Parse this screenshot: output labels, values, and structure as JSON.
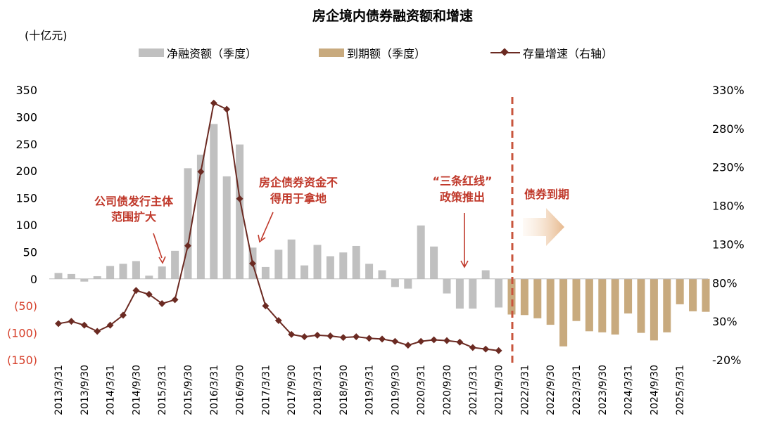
{
  "chart_data": {
    "type": "bar",
    "title": "房企境内债券融资额和增速",
    "unit_label": "(十亿元)",
    "legend": [
      {
        "key": "net",
        "label": "净融资额（季度）",
        "color": "#c0c0c0",
        "marker": "bar"
      },
      {
        "key": "maturity",
        "label": "到期额（季度）",
        "color": "#c8aa7e",
        "marker": "bar"
      },
      {
        "key": "growth",
        "label": "存量增速（右轴）",
        "color": "#6b2a22",
        "marker": "line-diamond"
      }
    ],
    "left_axis": {
      "range": [
        -150,
        350
      ],
      "ticks": [
        {
          "value": 350,
          "label": "350"
        },
        {
          "value": 300,
          "label": "300"
        },
        {
          "value": 250,
          "label": "250"
        },
        {
          "value": 200,
          "label": "200"
        },
        {
          "value": 150,
          "label": "150"
        },
        {
          "value": 100,
          "label": "100"
        },
        {
          "value": 50,
          "label": "50"
        },
        {
          "value": 0,
          "label": "0"
        },
        {
          "value": -50,
          "label": "(50)"
        },
        {
          "value": -100,
          "label": "(100)"
        },
        {
          "value": -150,
          "label": "(150)"
        }
      ]
    },
    "right_axis": {
      "range": [
        -20,
        330
      ],
      "ticks": [
        {
          "value": 330,
          "label": "330%"
        },
        {
          "value": 280,
          "label": "280%"
        },
        {
          "value": 230,
          "label": "230%"
        },
        {
          "value": 180,
          "label": "180%"
        },
        {
          "value": 130,
          "label": "130%"
        },
        {
          "value": 80,
          "label": "80%"
        },
        {
          "value": 30,
          "label": "30%"
        },
        {
          "value": -20,
          "label": "-20%"
        }
      ]
    },
    "x_tick_labels": [
      "2013/3/31",
      "2013/9/30",
      "2014/3/31",
      "2014/9/30",
      "2015/3/31",
      "2015/9/30",
      "2016/3/31",
      "2016/9/30",
      "2017/3/31",
      "2017/9/30",
      "2018/3/31",
      "2018/9/30",
      "2019/3/31",
      "2019/9/30",
      "2020/3/31",
      "2020/9/30",
      "2021/3/31",
      "2021/9/30",
      "2022/3/31",
      "2022/9/30",
      "2023/3/31",
      "2023/9/30",
      "2024/3/31",
      "2024/9/30",
      "2025/3/31"
    ],
    "quarters": [
      "2013Q1",
      "2013Q2",
      "2013Q3",
      "2013Q4",
      "2014Q1",
      "2014Q2",
      "2014Q3",
      "2014Q4",
      "2015Q1",
      "2015Q2",
      "2015Q3",
      "2015Q4",
      "2016Q1",
      "2016Q2",
      "2016Q3",
      "2016Q4",
      "2017Q1",
      "2017Q2",
      "2017Q3",
      "2017Q4",
      "2018Q1",
      "2018Q2",
      "2018Q3",
      "2018Q4",
      "2019Q1",
      "2019Q2",
      "2019Q3",
      "2019Q4",
      "2020Q1",
      "2020Q2",
      "2020Q3",
      "2020Q4",
      "2021Q1",
      "2021Q2",
      "2021Q3",
      "2021Q4",
      "2022Q1",
      "2022Q2",
      "2022Q3",
      "2022Q4",
      "2023Q1",
      "2023Q2",
      "2023Q3",
      "2023Q4",
      "2024Q1",
      "2024Q2",
      "2024Q3",
      "2024Q4",
      "2025Q1",
      "2025Q2",
      "2025Q3"
    ],
    "series": [
      {
        "name": "净融资额（季度）",
        "unit": "十亿元",
        "values": [
          11,
          9,
          -5,
          5,
          24,
          28,
          33,
          6,
          23,
          52,
          205,
          230,
          287,
          190,
          249,
          58,
          22,
          54,
          73,
          25,
          63,
          42,
          49,
          61,
          28,
          16,
          -15,
          -18,
          99,
          60,
          -27,
          -55,
          -55,
          16,
          -53,
          null,
          null,
          null,
          null,
          null,
          null,
          null,
          null,
          null,
          null,
          null,
          null,
          null,
          null,
          null,
          null
        ]
      },
      {
        "name": "到期额（季度）",
        "unit": "十亿元",
        "values": [
          null,
          null,
          null,
          null,
          null,
          null,
          null,
          null,
          null,
          null,
          null,
          null,
          null,
          null,
          null,
          null,
          null,
          null,
          null,
          null,
          null,
          null,
          null,
          null,
          null,
          null,
          null,
          null,
          null,
          null,
          null,
          null,
          null,
          null,
          null,
          -66,
          -67,
          -73,
          -85,
          -125,
          -78,
          -97,
          -99,
          -103,
          -64,
          -100,
          -114,
          -99,
          -47,
          -60,
          -61
        ]
      },
      {
        "name": "存量增速（右轴）",
        "unit": "%",
        "values": [
          27,
          30,
          25,
          17,
          25,
          38,
          70,
          65,
          53,
          58,
          128,
          224,
          313,
          305,
          189,
          105,
          50,
          31,
          13,
          10,
          12,
          11,
          9,
          10,
          8,
          7,
          4,
          -1,
          4,
          6,
          5,
          3,
          -4,
          -6,
          -8,
          null,
          null,
          null,
          null,
          null,
          null,
          null,
          null,
          null,
          null,
          null,
          null,
          null,
          null,
          null,
          null
        ]
      }
    ],
    "annotations": [
      {
        "lines": [
          "公司债发行主体",
          "范围扩大"
        ]
      },
      {
        "lines": [
          "房企债券资金不",
          "得用于拿地"
        ]
      },
      {
        "lines": [
          "“三条红线”",
          "政策推出"
        ]
      },
      {
        "lines": [
          "债券到期"
        ]
      }
    ],
    "colors": {
      "divider": "#c8553d",
      "annotation": "#c0392b",
      "negative_tick": "#d6402b"
    }
  }
}
